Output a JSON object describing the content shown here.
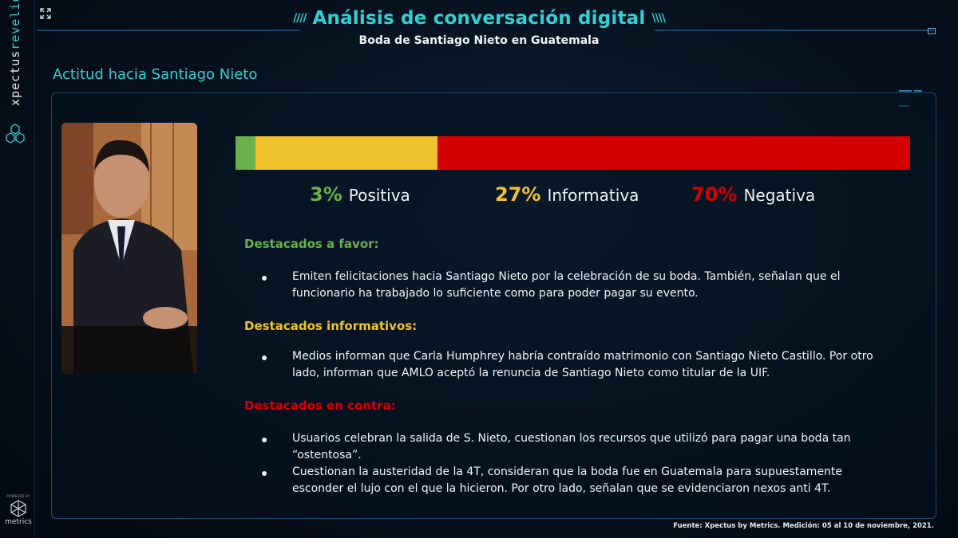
{
  "brand": {
    "part1": "xpectus",
    "part2": "revelio"
  },
  "powered": {
    "by": "POWERED BY",
    "name": "metrics"
  },
  "header": {
    "title": "Análisis de conversación digital",
    "subtitle": "Boda de Santiago Nieto en Guatemala"
  },
  "section": {
    "title": "Actitud hacia Santiago Nieto"
  },
  "colors": {
    "accent": "#2fd1d3",
    "positive": "#6ab04c",
    "informative": "#f0c22e",
    "negative": "#d40000"
  },
  "sentiment": {
    "positive": {
      "value": 3,
      "pct": "3%",
      "label": "Positiva"
    },
    "informative": {
      "value": 27,
      "pct": "27%",
      "label": "Informativa"
    },
    "negative": {
      "value": 70,
      "pct": "70%",
      "label": "Negativa"
    }
  },
  "highlights": {
    "favor": {
      "title": "Destacados a favor:",
      "items": [
        "Emiten felicitaciones hacia Santiago Nieto por la celebración de su boda. También, señalan que el funcionario ha trabajado lo suficiente como para poder pagar su evento."
      ]
    },
    "informative": {
      "title": "Destacados informativos:",
      "items": [
        "Medios informan que Carla Humphrey habría contraído matrimonio con Santiago Nieto Castillo. Por otro lado, informan que AMLO aceptó la renuncia de Santiago Nieto como titular de la UIF."
      ]
    },
    "against": {
      "title": "Destacados en contra:",
      "items": [
        "Usuarios celebran la salida de S. Nieto, cuestionan los recursos que utilizó para pagar una boda tan “ostentosa”.",
        "Cuestionan la austeridad de la 4T, consideran que la boda fue en Guatemala para supuestamente esconder el lujo con el que la hicieron.  Por otro lado, señalan que se evidenciaron nexos anti 4T."
      ]
    }
  },
  "footer": {
    "source": "Fuente: Xpectus by Metrics. Medición: 05 al 10 de noviembre, 2021."
  }
}
